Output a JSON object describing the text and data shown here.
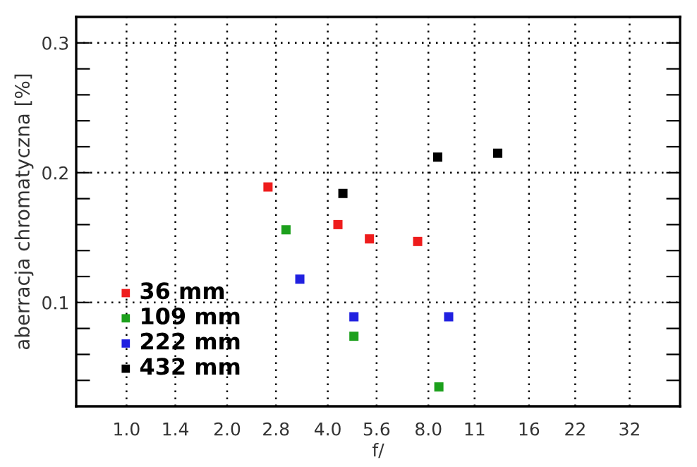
{
  "chart_data": {
    "type": "scatter",
    "xlabel": "f/",
    "ylabel": "aberracja chromatyczna [%]",
    "log": "x",
    "marker": "square",
    "grid": true,
    "legend": "bottom left",
    "xlim": [
      0.707,
      45.3
    ],
    "ylim": [
      0.02,
      0.32
    ],
    "xticks": [
      {
        "value": 1.0,
        "label": "1.0"
      },
      {
        "value": 1.4,
        "label": "1.4"
      },
      {
        "value": 2.0,
        "label": "2.0"
      },
      {
        "value": 2.8,
        "label": "2.8"
      },
      {
        "value": 4.0,
        "label": "4.0"
      },
      {
        "value": 5.6,
        "label": "5.6"
      },
      {
        "value": 8.0,
        "label": "8.0"
      },
      11,
      16,
      22,
      32
    ],
    "yticks": [
      {
        "value": 0.04,
        "label": null
      },
      {
        "value": 0.06,
        "label": null
      },
      {
        "value": 0.08,
        "label": null
      },
      {
        "value": 0.1,
        "label": "0.1"
      },
      {
        "value": 0.12,
        "label": null
      },
      {
        "value": 0.14,
        "label": null
      },
      {
        "value": 0.16,
        "label": null
      },
      {
        "value": 0.18,
        "label": null
      },
      {
        "value": 0.2,
        "label": "0.2"
      },
      {
        "value": 0.22,
        "label": null
      },
      {
        "value": 0.24,
        "label": null
      },
      {
        "value": 0.26,
        "label": null
      },
      {
        "value": 0.28,
        "label": null
      },
      {
        "value": 0.3,
        "label": "0.3"
      }
    ],
    "series": [
      {
        "name": "36 mm",
        "color": "#ee1c1c",
        "x": [
          2.65,
          4.29,
          5.33,
          7.43
        ],
        "values": [
          0.189,
          0.16,
          0.149,
          0.147
        ]
      },
      {
        "name": "109 mm",
        "color": "#1ca01c",
        "x": [
          3.0,
          4.79,
          8.6
        ],
        "values": [
          0.156,
          0.074,
          0.035
        ]
      },
      {
        "name": "222 mm",
        "color": "#2020e0",
        "x": [
          3.3,
          4.79,
          9.2
        ],
        "values": [
          0.118,
          0.089,
          0.089
        ]
      },
      {
        "name": "432 mm",
        "color": "#000000",
        "x": [
          4.44,
          8.53,
          12.9
        ],
        "values": [
          0.184,
          0.212,
          0.215
        ]
      }
    ]
  }
}
